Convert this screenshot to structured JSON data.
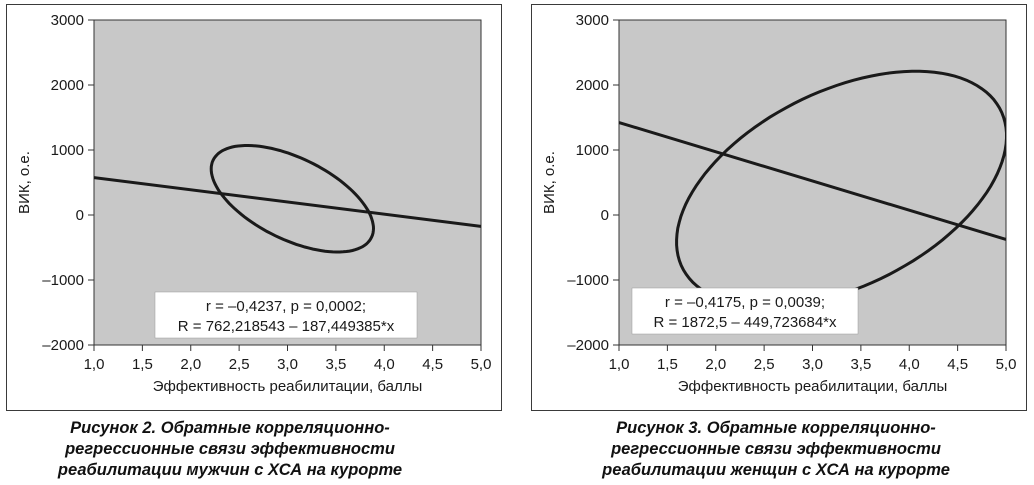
{
  "chart_data": [
    {
      "type": "scatter",
      "xlabel": "Эффективность реабилитации, баллы",
      "ylabel": "ВИК, о.е.",
      "xlim": [
        1.0,
        5.0
      ],
      "ylim": [
        -2000,
        3000
      ],
      "x_ticks": [
        "1,0",
        "1,5",
        "2,0",
        "2,5",
        "3,0",
        "3,5",
        "4,0",
        "4,5",
        "5,0"
      ],
      "y_ticks": [
        "3000",
        "2000",
        "1000",
        "0",
        "–1000",
        "–2000"
      ],
      "grid": false,
      "regression": {
        "x": [
          1.0,
          5.0
        ],
        "y": [
          575,
          -175
        ]
      },
      "ellipse": {
        "center": [
          3.05,
          250
        ],
        "semi_axis_x": 0.95,
        "semi_axis_y": 600,
        "rotation_deg": 33
      },
      "annotation": [
        "r = –0,4237, p = 0,0002;",
        "R = 762,218543 – 187,449385*x"
      ]
    },
    {
      "type": "scatter",
      "xlabel": "Эффективность реабилитации, баллы",
      "ylabel": "ВИК, о.е.",
      "xlim": [
        1.0,
        5.0
      ],
      "ylim": [
        -2000,
        3000
      ],
      "x_ticks": [
        "1,0",
        "1,5",
        "2,0",
        "2,5",
        "3,0",
        "3,5",
        "4,0",
        "4,5",
        "5,0"
      ],
      "y_ticks": [
        "3000",
        "2000",
        "1000",
        "0",
        "–1000",
        "–2000"
      ],
      "grid": false,
      "regression": {
        "x": [
          1.0,
          5.0
        ],
        "y": [
          1423,
          -376
        ]
      },
      "ellipse": {
        "center": [
          3.3,
          400
        ],
        "semi_axis_x": 1.15,
        "semi_axis_y": 2400,
        "rotation_deg": 55
      },
      "annotation": [
        "r = –0,4175, p = 0,0039;",
        "R = 1872,5 – 449,723684*x"
      ]
    }
  ],
  "captions": [
    [
      "Рисунок 2.  Обратные корреляционно-",
      "регрессионные связи эффективности",
      "реабилитации мужчин с ХСА на курорте"
    ],
    [
      "Рисунок 3. Обратные корреляционно-",
      "регрессионные связи эффективности",
      "реабилитации женщин с ХСА на курорте"
    ]
  ],
  "colors": {
    "plot_bg": "#c8c8c8",
    "line": "#1a1a1a",
    "annotation_bg": "#ffffff"
  }
}
